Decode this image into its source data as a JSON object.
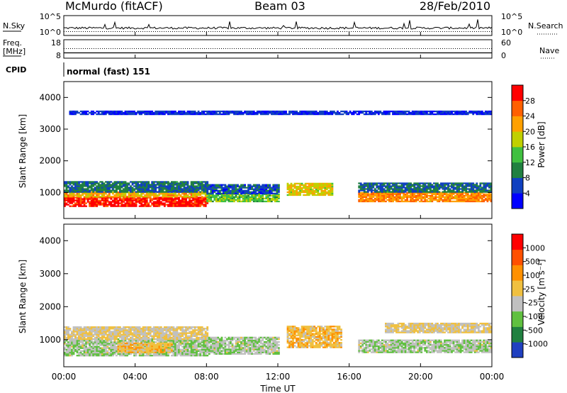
{
  "header": {
    "station": "McMurdo (fitACF)",
    "beam": "Beam 03",
    "date": "28/Feb/2010"
  },
  "top_panels": {
    "nsky_label": "N.Sky",
    "nsky_ticks": [
      "10^5",
      "10^0"
    ],
    "nsearch_label": "N.Search",
    "nsearch_ticks": [
      "10^5",
      "10^0"
    ],
    "freq_label_1": "Freq.",
    "freq_label_2": "[MHz]",
    "freq_ticks": [
      "18",
      "8"
    ],
    "nave_label": "Nave",
    "nave_ticks": [
      "60",
      "0"
    ],
    "cpid_label": "CPID",
    "cpid_value": "normal (fast) 151"
  },
  "axes": {
    "xlabel": "Time UT",
    "x_ticks": [
      "00:00",
      "04:00",
      "08:00",
      "12:00",
      "16:00",
      "20:00",
      "00:00"
    ],
    "ylabel": "Slant Range [km]",
    "y_ticks": [
      "4000",
      "3000",
      "2000",
      "1000"
    ]
  },
  "colorbars": {
    "power": {
      "label": "Power [dB]",
      "ticks": [
        "28",
        "24",
        "20",
        "16",
        "12",
        "8",
        "4"
      ],
      "colors": [
        "#0000ff",
        "#1040c0",
        "#208040",
        "#40c040",
        "#c0d000",
        "#ffa000",
        "#ff6000",
        "#ff0000"
      ]
    },
    "velocity": {
      "label": "Velocity [m s⁻¹]",
      "ticks": [
        "1000",
        "500",
        "100",
        "25",
        "-25",
        "-100",
        "-500",
        "-1000"
      ],
      "colors": [
        "#2040c0",
        "#208040",
        "#60c040",
        "#c0c0c0",
        "#f0c040",
        "#ff9000",
        "#ff5000",
        "#ff0000"
      ]
    }
  },
  "chart_data": [
    {
      "type": "line",
      "title": "N.Sky / N.Search",
      "x_range": [
        "00:00",
        "24:00"
      ],
      "y_scale": "log",
      "ylim": [
        1,
        100000
      ],
      "series": [
        {
          "name": "N.Sky",
          "style": "solid"
        },
        {
          "name": "N.Search",
          "style": "dotted"
        }
      ]
    },
    {
      "type": "line",
      "title": "Freq. / Nave",
      "x_range": [
        "00:00",
        "24:00"
      ],
      "ylim_freq": [
        8,
        18
      ],
      "ylim_nave": [
        0,
        60
      ],
      "series": [
        {
          "name": "Freq.",
          "style": "solid"
        },
        {
          "name": "Nave",
          "style": "dotted"
        }
      ]
    },
    {
      "type": "heatmap",
      "title": "Power [dB]",
      "x_range_hours": [
        0,
        24
      ],
      "ylim": [
        180,
        4500
      ],
      "colorbar_range": [
        0,
        30
      ],
      "bands": [
        {
          "from": 0,
          "to": 8,
          "range_lo": 550,
          "range_hi": 850,
          "value": 28
        },
        {
          "from": 0,
          "to": 8,
          "range_lo": 850,
          "range_hi": 1000,
          "value": 20
        },
        {
          "from": 0,
          "to": 8,
          "range_lo": 1000,
          "range_hi": 1350,
          "value": 8
        },
        {
          "from": 8,
          "to": 12,
          "range_lo": 700,
          "range_hi": 950,
          "value": 14
        },
        {
          "from": 8,
          "to": 12,
          "range_lo": 950,
          "range_hi": 1250,
          "value": 6
        },
        {
          "from": 12.5,
          "to": 15,
          "range_lo": 900,
          "range_hi": 1300,
          "value": 18
        },
        {
          "from": 16.5,
          "to": 24,
          "range_lo": 700,
          "range_hi": 1000,
          "value": 22
        },
        {
          "from": 16.5,
          "to": 24,
          "range_lo": 1000,
          "range_hi": 1300,
          "value": 8
        },
        {
          "from": 0.3,
          "to": 24,
          "range_lo": 3450,
          "range_hi": 3550,
          "value": 4
        }
      ]
    },
    {
      "type": "heatmap",
      "title": "Velocity",
      "x_range_hours": [
        0,
        24
      ],
      "ylim": [
        180,
        4500
      ],
      "colorbar_range": [
        -1000,
        1000
      ],
      "bands": [
        {
          "from": 0,
          "to": 8,
          "range_lo": 500,
          "range_hi": 1000,
          "value": -200
        },
        {
          "from": 0,
          "to": 8,
          "range_lo": 1000,
          "range_hi": 1400,
          "value": 0
        },
        {
          "from": 3,
          "to": 6,
          "range_lo": 600,
          "range_hi": 900,
          "value": 150
        },
        {
          "from": 8,
          "to": 12,
          "range_lo": 550,
          "range_hi": 1050,
          "value": -200
        },
        {
          "from": 12.5,
          "to": 15.5,
          "range_lo": 750,
          "range_hi": 1400,
          "value": 150
        },
        {
          "from": 16.5,
          "to": 24,
          "range_lo": 600,
          "range_hi": 1000,
          "value": -200
        },
        {
          "from": 18,
          "to": 24,
          "range_lo": 1200,
          "range_hi": 1500,
          "value": 0
        }
      ]
    }
  ]
}
